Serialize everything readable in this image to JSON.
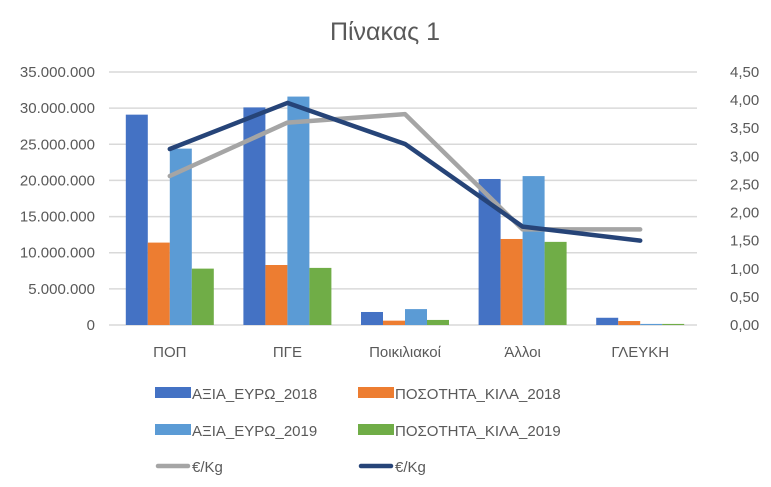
{
  "chart_data": {
    "type": "bar",
    "combo": "bar + line (secondary axis)",
    "title": "Πίνακας 1",
    "categories": [
      "ΠΟΠ",
      "ΠΓΕ",
      "Ποικιλιακοί",
      "Άλλοι",
      "ΓΛΕΥΚΗ"
    ],
    "primary_axis": {
      "ylim": [
        0,
        35000000
      ],
      "ticks": [
        0,
        5000000,
        10000000,
        15000000,
        20000000,
        25000000,
        30000000,
        35000000
      ],
      "tick_labels": [
        "0",
        "5.000.000",
        "10.000.000",
        "15.000.000",
        "20.000.000",
        "25.000.000",
        "30.000.000",
        "35.000.000"
      ],
      "grid": true
    },
    "secondary_axis": {
      "ylim": [
        0,
        4.5
      ],
      "ticks": [
        0,
        0.5,
        1,
        1.5,
        2,
        2.5,
        3,
        3.5,
        4,
        4.5
      ],
      "tick_labels": [
        "0,00",
        "0,50",
        "1,00",
        "1,50",
        "2,00",
        "2,50",
        "3,00",
        "3,50",
        "4,00",
        "4,50"
      ]
    },
    "series": [
      {
        "name": "ΑΞΙΑ_ΕΥΡΩ_2018",
        "type": "bar",
        "axis": "primary",
        "color": "#4472C4",
        "values": [
          29100000,
          30100000,
          1800000,
          20200000,
          1000000
        ]
      },
      {
        "name": "ΠΟΣΟΤΗΤΑ_ΚΙΛΑ_2018",
        "type": "bar",
        "axis": "primary",
        "color": "#ED7D31",
        "values": [
          11400000,
          8300000,
          600000,
          11900000,
          550000
        ]
      },
      {
        "name": "ΑΞΙΑ_ΕΥΡΩ_2019",
        "type": "bar",
        "axis": "primary",
        "color": "#5B9BD5",
        "values": [
          24400000,
          31600000,
          2200000,
          20600000,
          150000
        ]
      },
      {
        "name": "ΠΟΣΟΤΗΤΑ_ΚΙΛΑ_2019",
        "type": "bar",
        "axis": "primary",
        "color": "#70AD47",
        "values": [
          7800000,
          7900000,
          700000,
          11500000,
          150000
        ]
      },
      {
        "name": "€/Kg",
        "type": "line",
        "axis": "secondary",
        "color": "#A5A5A5",
        "values": [
          2.65,
          3.6,
          3.75,
          1.7,
          1.7
        ]
      },
      {
        "name": "€/Kg",
        "type": "line",
        "axis": "secondary",
        "color": "#264478",
        "values": [
          3.13,
          3.95,
          3.22,
          1.75,
          1.5
        ]
      }
    ],
    "xlabel": "",
    "ylabel": "",
    "legend_position": "bottom"
  }
}
